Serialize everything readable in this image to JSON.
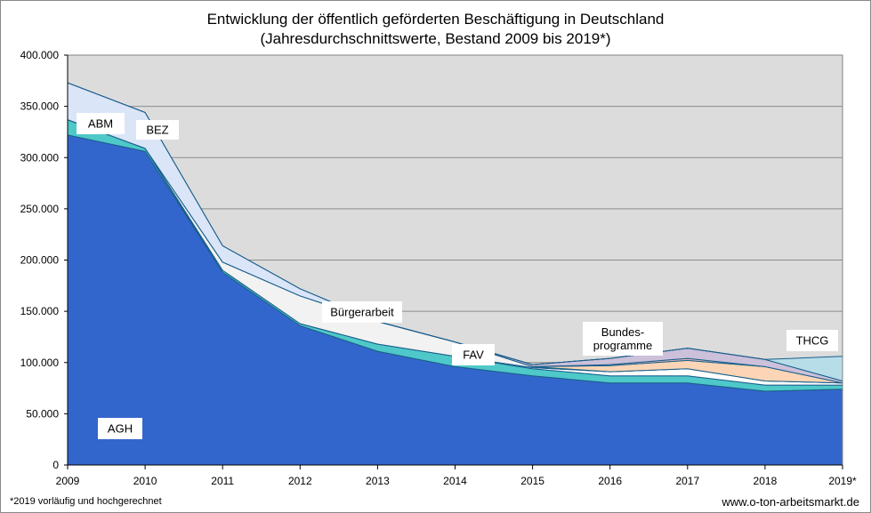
{
  "chart_data": {
    "type": "area",
    "title": "Entwicklung  der öffentlich geförderten Beschäftigung in Deutschland",
    "subtitle": "(Jahresdurchschnittswerte, Bestand 2009 bis 2019*)",
    "x": [
      "2009",
      "2010",
      "2011",
      "2012",
      "2013",
      "2014",
      "2015",
      "2016",
      "2017",
      "2018",
      "2019*"
    ],
    "ylim": [
      0,
      400000
    ],
    "yticks": [
      "0",
      "50.000",
      "100.000",
      "150.000",
      "200.000",
      "250.000",
      "300.000",
      "350.000",
      "400.000"
    ],
    "grid": true,
    "stacked": true,
    "series": [
      {
        "name": "AGH",
        "color": "#3366cc",
        "values": [
          322000,
          306000,
          188000,
          136000,
          111000,
          96000,
          87000,
          80000,
          80000,
          72000,
          74000
        ]
      },
      {
        "name": "ABM",
        "color": "#4ec8c8",
        "values": [
          15000,
          3000,
          0,
          0,
          0,
          0,
          0,
          0,
          0,
          0,
          0
        ]
      },
      {
        "name": "",
        "color": "#4ec8c8",
        "values": [
          0,
          0,
          2000,
          2000,
          7000,
          10000,
          7000,
          7000,
          7000,
          6000,
          4000
        ]
      },
      {
        "name": "FAV",
        "color": "#ffffff",
        "values": [
          0,
          0,
          0,
          0,
          0,
          0,
          1000,
          4000,
          7000,
          4000,
          2000
        ]
      },
      {
        "name": "Bürgerarbeit",
        "color": "#f2f2f2",
        "values": [
          0,
          0,
          8000,
          27000,
          22000,
          14000,
          1000,
          0,
          0,
          0,
          0
        ]
      },
      {
        "name": "Bundesprogramme",
        "color": "#fbd5b5",
        "values": [
          0,
          0,
          0,
          0,
          0,
          0,
          0,
          6000,
          8000,
          14000,
          0
        ]
      },
      {
        "name": "",
        "color": "#e6b9b8",
        "values": [
          0,
          0,
          0,
          0,
          0,
          0,
          0,
          1000,
          2000,
          0,
          0
        ]
      },
      {
        "name": "",
        "color": "#ccc0da",
        "values": [
          0,
          0,
          0,
          0,
          0,
          0,
          2000,
          6000,
          10000,
          7000,
          2000
        ]
      },
      {
        "name": "BEZ",
        "color": "#dbe5f8",
        "values": [
          36000,
          35000,
          16000,
          7000,
          0,
          0,
          0,
          0,
          0,
          0,
          0
        ]
      },
      {
        "name": "THCG",
        "color": "#b7dde8",
        "values": [
          0,
          0,
          0,
          0,
          0,
          0,
          0,
          0,
          0,
          0,
          24000
        ]
      }
    ],
    "labels": [
      "AGH",
      "ABM",
      "BEZ",
      "Bürgerarbeit",
      "FAV",
      "Bundes-",
      "programme",
      "THCG"
    ],
    "colors": {
      "plot_background": "#dcdcdc",
      "gridline": "#8c8c8c",
      "outline": "#1a5f8c"
    }
  },
  "footnote": "*2019 vorläufig und hochgerechnet",
  "source": "www.o-ton-arbeitsmarkt.de"
}
